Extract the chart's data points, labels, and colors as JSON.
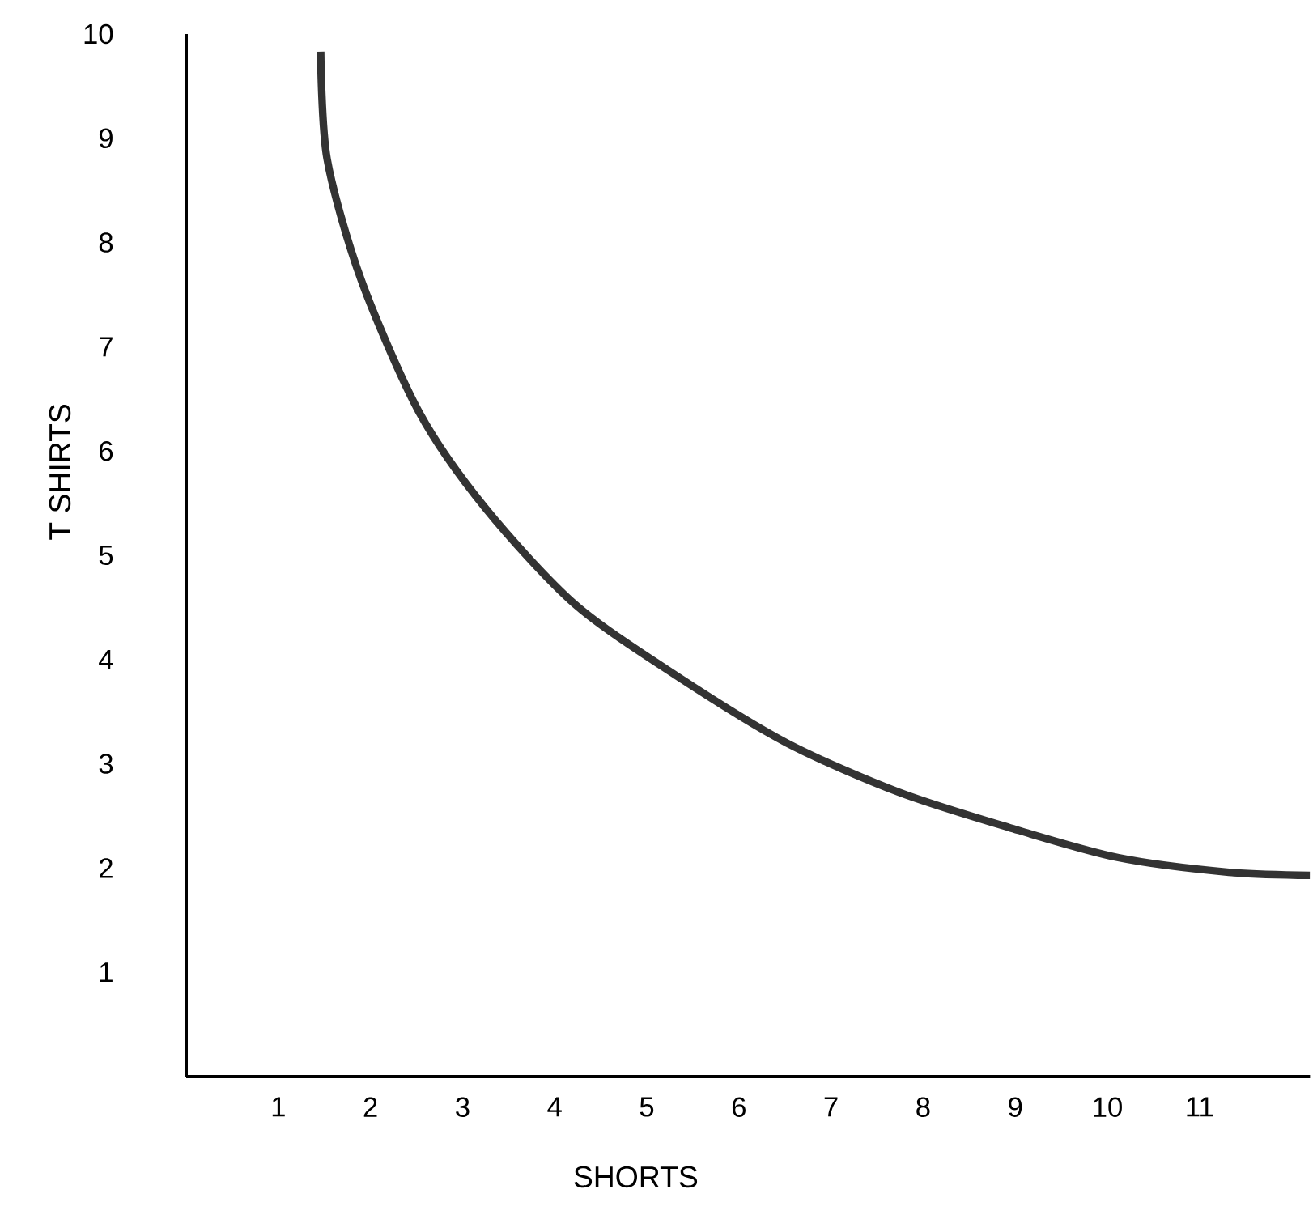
{
  "chart_data": {
    "type": "line",
    "xlabel": "SHORTS",
    "ylabel": "T SHIRTS",
    "x": [
      1.46,
      1.53,
      1.9,
      2.53,
      3.25,
      4.22,
      5.33,
      6.52,
      7.73,
      8.93,
      10.12,
      11.32,
      12.2
    ],
    "series": [
      {
        "color": "#333333",
        "values": [
          9.83,
          8.8,
          7.64,
          6.37,
          5.45,
          4.53,
          3.84,
          3.2,
          2.73,
          2.39,
          2.1,
          1.96,
          1.93
        ]
      }
    ],
    "xlim": [
      0,
      12.2
    ],
    "ylim": [
      0,
      10
    ],
    "xticks": [
      1,
      2,
      3,
      4,
      5,
      6,
      7,
      8,
      9,
      10,
      11
    ],
    "yticks": [
      1,
      2,
      3,
      4,
      5,
      6,
      7,
      8,
      9,
      10
    ],
    "grid": false,
    "marker": "none",
    "line_style": "solid"
  }
}
